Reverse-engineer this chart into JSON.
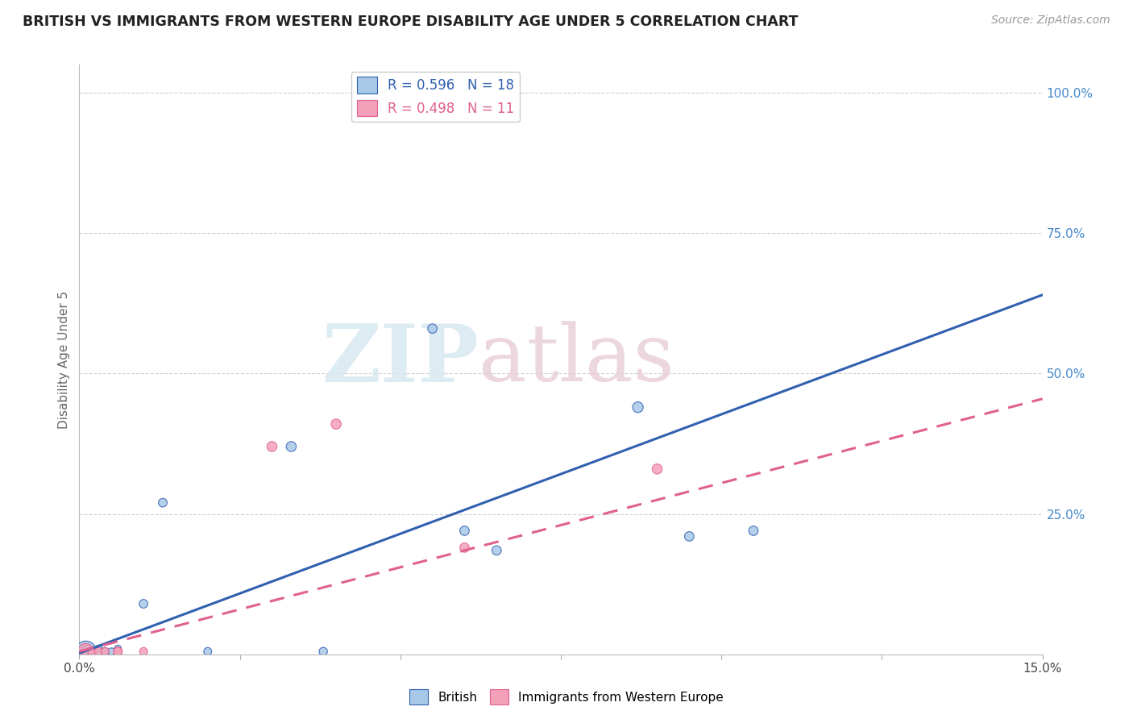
{
  "title": "BRITISH VS IMMIGRANTS FROM WESTERN EUROPE DISABILITY AGE UNDER 5 CORRELATION CHART",
  "source": "Source: ZipAtlas.com",
  "ylabel": "Disability Age Under 5",
  "right_yticks": [
    0.0,
    0.25,
    0.5,
    0.75,
    1.0
  ],
  "right_yticklabels": [
    "",
    "25.0%",
    "50.0%",
    "75.0%",
    "100.0%"
  ],
  "british_color": "#a8c8e8",
  "immigrant_color": "#f4a0b8",
  "british_line_color": "#3060b0",
  "immigrant_line_color": "#e06090",
  "british_R": 0.596,
  "british_N": 18,
  "immigrant_R": 0.498,
  "immigrant_N": 11,
  "british_x": [
    0.001,
    0.001,
    0.002,
    0.003,
    0.004,
    0.005,
    0.006,
    0.01,
    0.013,
    0.02,
    0.033,
    0.038,
    0.055,
    0.06,
    0.065,
    0.087,
    0.095,
    0.105
  ],
  "british_y": [
    0.005,
    0.008,
    0.005,
    0.01,
    0.005,
    0.005,
    0.01,
    0.09,
    0.27,
    0.005,
    0.37,
    0.005,
    0.58,
    0.22,
    0.185,
    0.44,
    0.21,
    0.22
  ],
  "british_size": [
    350,
    60,
    60,
    40,
    50,
    40,
    40,
    60,
    60,
    50,
    80,
    55,
    70,
    70,
    70,
    90,
    70,
    70
  ],
  "immigrant_x": [
    0.001,
    0.002,
    0.003,
    0.004,
    0.006,
    0.006,
    0.01,
    0.03,
    0.04,
    0.06,
    0.09
  ],
  "immigrant_y": [
    0.005,
    0.005,
    0.005,
    0.005,
    0.005,
    0.005,
    0.005,
    0.37,
    0.41,
    0.19,
    0.33
  ],
  "immigrant_size": [
    200,
    60,
    50,
    50,
    60,
    60,
    50,
    80,
    80,
    70,
    80
  ],
  "brit_line_x0": 0.0,
  "brit_line_y0": 0.002,
  "brit_line_x1": 0.15,
  "brit_line_y1": 0.64,
  "imm_line_x0": 0.0,
  "imm_line_y0": 0.005,
  "imm_line_x1": 0.15,
  "imm_line_y1": 0.455,
  "xmin": 0.0,
  "xmax": 0.15,
  "ymin": 0.0,
  "ymax": 1.05,
  "background_color": "#ffffff",
  "grid_color": "#d0d0d0",
  "watermark_zip": "ZIP",
  "watermark_atlas": "atlas"
}
